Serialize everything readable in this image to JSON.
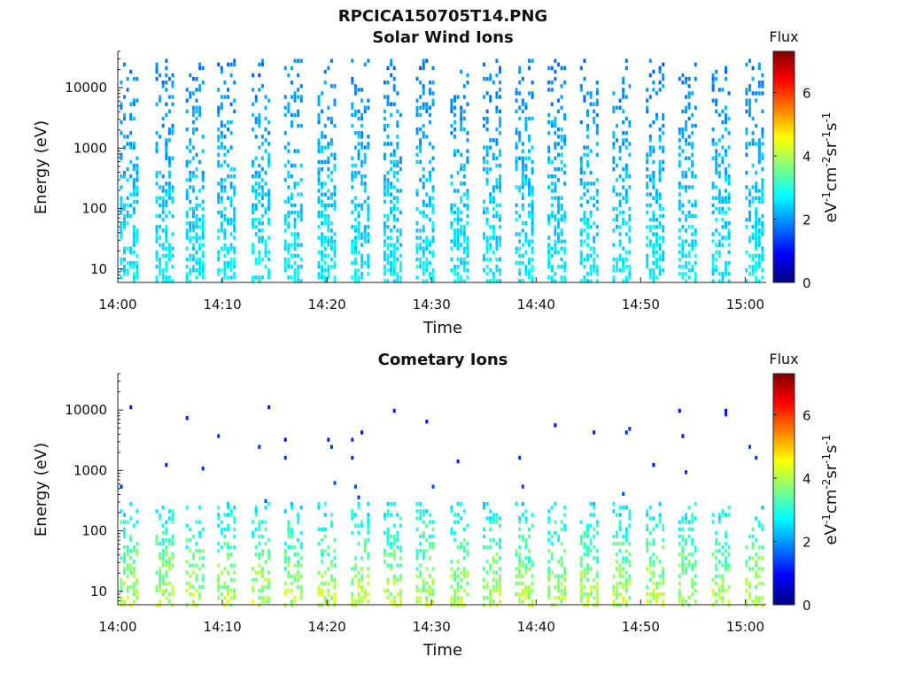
{
  "figure": {
    "title": "RPCICA150705T14.PNG"
  },
  "chart_data": [
    {
      "type": "heatmap",
      "title": "Solar Wind Ions",
      "xlabel": "Time",
      "ylabel": "Energy (eV)",
      "x_ticks": [
        "14:00",
        "14:10",
        "14:20",
        "14:30",
        "14:40",
        "14:50",
        "15:00"
      ],
      "y_ticks": [
        "10",
        "100",
        "1000",
        "10000"
      ],
      "y_scale": "log",
      "y_range": [
        6,
        40000
      ],
      "x_range": [
        "14:00",
        "15:02"
      ],
      "colorbar": {
        "title": "Flux",
        "label": "eV-1cm-2sr-1s-1",
        "range": [
          0,
          7.3
        ],
        "ticks": [
          "0",
          "2",
          "4",
          "6"
        ],
        "colormap": "jet"
      },
      "pattern": {
        "sweep_starts_min": [
          0.2,
          3.6,
          6.5,
          9.5,
          12.8,
          15.9,
          19.1,
          22.3,
          25.4,
          28.5,
          31.8,
          34.9,
          38.0,
          41.1,
          44.2,
          47.3,
          50.5,
          53.6,
          56.8,
          60.0
        ],
        "sweep_width_min": 1.6,
        "features": [
          {
            "name": "ion sweeps",
            "energy_range_eV": [
              6,
              30000
            ],
            "flux_range": [
              1.5,
              3.0
            ]
          }
        ]
      }
    },
    {
      "type": "heatmap",
      "title": "Cometary Ions",
      "xlabel": "Time",
      "ylabel": "Energy (eV)",
      "x_ticks": [
        "14:00",
        "14:10",
        "14:20",
        "14:30",
        "14:40",
        "14:50",
        "15:00"
      ],
      "y_ticks": [
        "10",
        "100",
        "1000",
        "10000"
      ],
      "y_scale": "log",
      "y_range": [
        6,
        40000
      ],
      "x_range": [
        "14:00",
        "15:02"
      ],
      "colorbar": {
        "title": "Flux",
        "label": "eV-1cm-2sr-1s-1",
        "range": [
          0,
          7.3
        ],
        "ticks": [
          "0",
          "2",
          "4",
          "6"
        ],
        "colormap": "jet"
      },
      "pattern": {
        "sweep_starts_min": [
          0.2,
          3.6,
          6.5,
          9.5,
          12.8,
          15.9,
          19.1,
          22.3,
          25.4,
          28.5,
          31.8,
          34.9,
          38.0,
          41.1,
          44.2,
          47.3,
          50.5,
          53.6,
          56.8,
          60.0
        ],
        "sweep_width_min": 1.6,
        "features": [
          {
            "name": "low-energy cometary band",
            "energy_range_eV": [
              6,
              300
            ],
            "flux_range": [
              2.2,
              4.6
            ]
          },
          {
            "name": "sparse high-energy counts",
            "energy_range_eV": [
              300,
              12000
            ],
            "flux_range": [
              0.8,
              1.6
            ]
          }
        ]
      }
    }
  ]
}
